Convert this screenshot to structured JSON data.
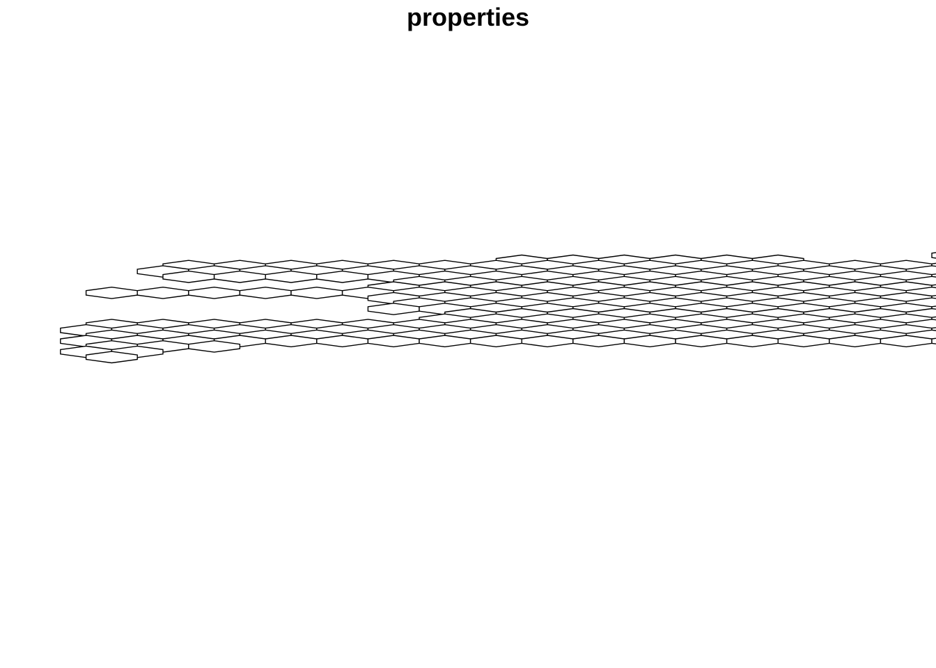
{
  "plot": {
    "title": "properties",
    "stroke_color": "#000000",
    "fill_color": "#ffffff",
    "background_color": "#ffffff"
  },
  "grid": {
    "rows": [
      {
        "row": 0,
        "start": 18,
        "count": 2
      },
      {
        "row": 1,
        "start": 9,
        "count": 6
      },
      {
        "row": 2,
        "start": 3,
        "count": 18
      },
      {
        "row": 3,
        "start": 2,
        "count": 20
      },
      {
        "row": 4,
        "start": 3,
        "count": 20
      },
      {
        "row": 5,
        "start": 7,
        "count": 20
      },
      {
        "row": 6,
        "start": 7,
        "count": 22
      },
      {
        "row": 7,
        "start": 1,
        "count": 27
      },
      {
        "row": 8,
        "start": 7,
        "count": 23
      },
      {
        "row": 9,
        "start": 7,
        "count": 24
      },
      {
        "row": 10,
        "start": 7,
        "count": 25
      },
      {
        "row": 11,
        "start": 8,
        "count": 26
      },
      {
        "row": 12,
        "start": 8,
        "count": 24
      },
      {
        "row": 13,
        "start": 1,
        "count": 30
      },
      {
        "row": 14,
        "start": 1,
        "count": 27
      },
      {
        "row": 15,
        "start": 1,
        "count": 28
      },
      {
        "row": 16,
        "start": 1,
        "count": 22
      },
      {
        "row": 17,
        "start": 1,
        "count": 3
      },
      {
        "row": 18,
        "start": 1,
        "count": 2
      },
      {
        "row": 19,
        "start": 1,
        "count": 1
      }
    ]
  }
}
